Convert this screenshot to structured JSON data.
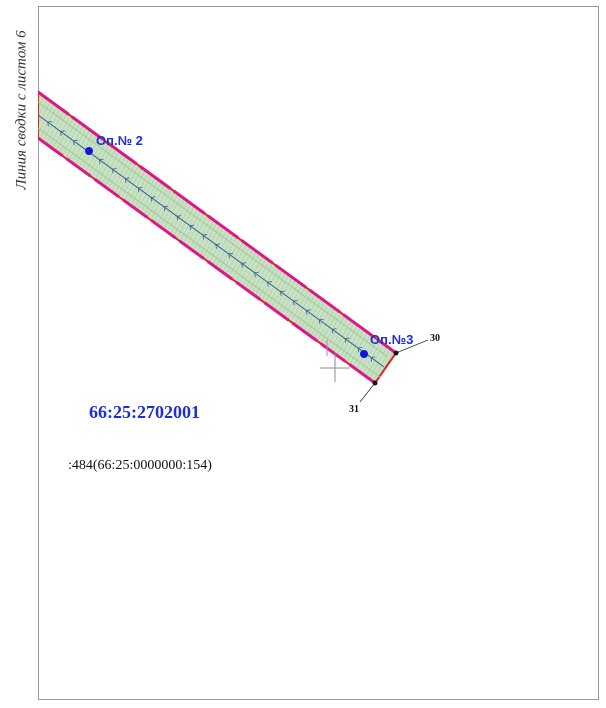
{
  "seam_label": "Линия сводки с листом 6",
  "supports": [
    {
      "label": "Оп.№ 2"
    },
    {
      "label": "Оп.№3"
    }
  ],
  "boundary_points": [
    {
      "label": "30"
    },
    {
      "label": "31"
    }
  ],
  "quarter_number": "66:25:2702001",
  "parcel_number": ":484(66:25:0000000:154)",
  "colors": {
    "zone_fill": "#c9e2c3",
    "zone_border": "#e0148a",
    "boundary_red": "#e02020",
    "line_axis": "#3a5a9a",
    "support_point": "#1414e0",
    "label_blue": "#1f2fd0",
    "frame": "#9a9a9a"
  }
}
